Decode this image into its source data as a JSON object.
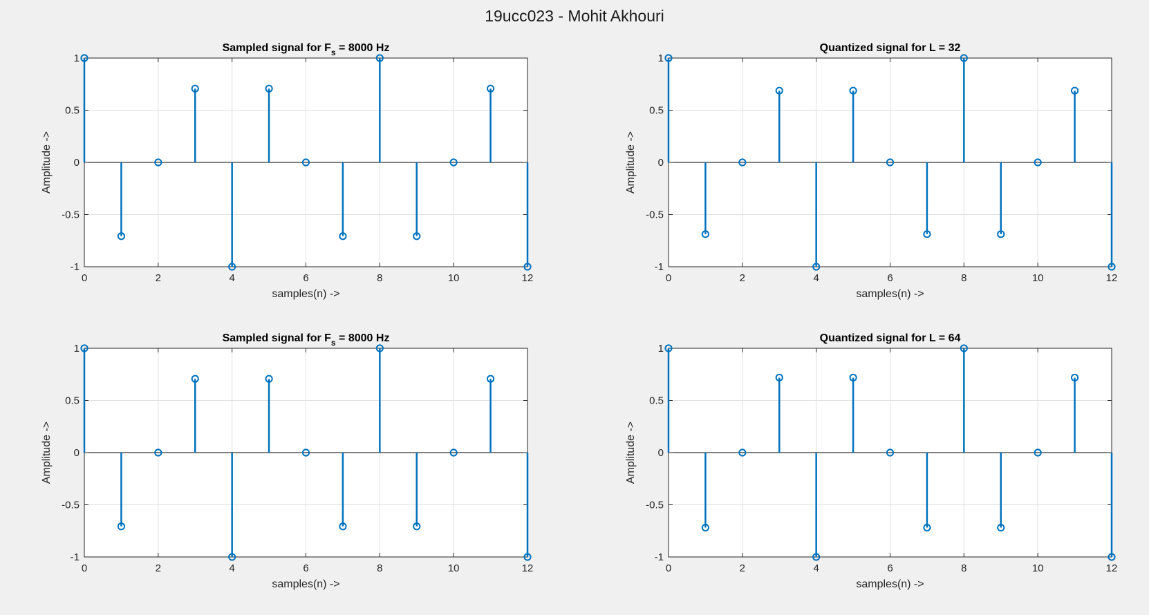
{
  "figure": {
    "title": "19ucc023 - Mohit Akhouri"
  },
  "colors": {
    "stem": "#0072BD",
    "grid": "#e0e0e0",
    "axes": "#262626",
    "figure_bg": "#f0f0f0",
    "plot_bg": "#ffffff"
  },
  "chart_data": [
    {
      "type": "stem",
      "title_main": "Sampled signal for F",
      "title_sub": "s",
      "title_rest": " = 8000 Hz",
      "xlabel": "samples(n) ->",
      "ylabel": "Amplitude ->",
      "xlim": [
        0,
        12
      ],
      "ylim": [
        -1,
        1
      ],
      "xticks": [
        0,
        2,
        4,
        6,
        8,
        10,
        12
      ],
      "yticks": [
        -1,
        -0.5,
        0,
        0.5,
        1
      ],
      "grid": true,
      "x": [
        0,
        1,
        2,
        3,
        4,
        5,
        6,
        7,
        8,
        9,
        10,
        11,
        12
      ],
      "y": [
        1,
        -0.7071,
        0,
        0.7071,
        -1,
        0.7071,
        0,
        -0.7071,
        1,
        -0.7071,
        0,
        0.7071,
        -1
      ]
    },
    {
      "type": "stem",
      "title_main": "Quantized signal for L = 32",
      "title_sub": "",
      "title_rest": "",
      "xlabel": "samples(n) ->",
      "ylabel": "Amplitude ->",
      "xlim": [
        0,
        12
      ],
      "ylim": [
        -1,
        1
      ],
      "xticks": [
        0,
        2,
        4,
        6,
        8,
        10,
        12
      ],
      "yticks": [
        -1,
        -0.5,
        0,
        0.5,
        1
      ],
      "grid": true,
      "x": [
        0,
        1,
        2,
        3,
        4,
        5,
        6,
        7,
        8,
        9,
        10,
        11,
        12
      ],
      "y": [
        1,
        -0.6875,
        0,
        0.6875,
        -1,
        0.6875,
        0,
        -0.6875,
        1,
        -0.6875,
        0,
        0.6875,
        -1
      ]
    },
    {
      "type": "stem",
      "title_main": "Sampled signal for F",
      "title_sub": "s",
      "title_rest": " = 8000 Hz",
      "xlabel": "samples(n) ->",
      "ylabel": "Amplitude ->",
      "xlim": [
        0,
        12
      ],
      "ylim": [
        -1,
        1
      ],
      "xticks": [
        0,
        2,
        4,
        6,
        8,
        10,
        12
      ],
      "yticks": [
        -1,
        -0.5,
        0,
        0.5,
        1
      ],
      "grid": true,
      "x": [
        0,
        1,
        2,
        3,
        4,
        5,
        6,
        7,
        8,
        9,
        10,
        11,
        12
      ],
      "y": [
        1,
        -0.7071,
        0,
        0.7071,
        -1,
        0.7071,
        0,
        -0.7071,
        1,
        -0.7071,
        0,
        0.7071,
        -1
      ]
    },
    {
      "type": "stem",
      "title_main": "Quantized signal for L = 64",
      "title_sub": "",
      "title_rest": "",
      "xlabel": "samples(n) ->",
      "ylabel": "Amplitude ->",
      "xlim": [
        0,
        12
      ],
      "ylim": [
        -1,
        1
      ],
      "xticks": [
        0,
        2,
        4,
        6,
        8,
        10,
        12
      ],
      "yticks": [
        -1,
        -0.5,
        0,
        0.5,
        1
      ],
      "grid": true,
      "x": [
        0,
        1,
        2,
        3,
        4,
        5,
        6,
        7,
        8,
        9,
        10,
        11,
        12
      ],
      "y": [
        1,
        -0.7188,
        0,
        0.7188,
        -1,
        0.7188,
        0,
        -0.7188,
        1,
        -0.7188,
        0,
        0.7188,
        -1
      ]
    }
  ]
}
